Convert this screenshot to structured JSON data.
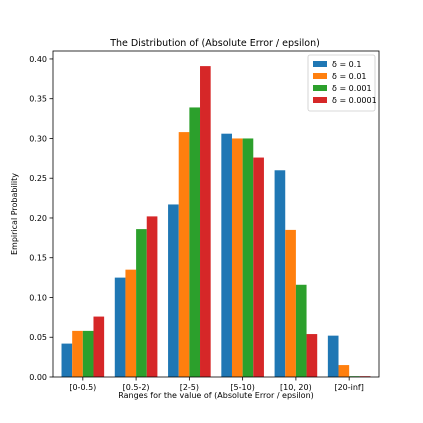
{
  "chart_data": {
    "type": "bar",
    "title": "The Distribution of (Absolute Error / epsilon)",
    "xlabel": "Ranges for the value of (Absolute Error / epsilon)",
    "ylabel": "Empirical Probability",
    "categories": [
      "[0-0.5)",
      "[0.5-2)",
      "[2-5)",
      "[5-10)",
      "[10, 20)",
      "[20-inf]"
    ],
    "ylim": [
      0,
      0.41
    ],
    "yticks": [
      "0.00",
      "0.05",
      "0.10",
      "0.15",
      "0.20",
      "0.25",
      "0.30",
      "0.35",
      "0.40"
    ],
    "legend_position": "top-right",
    "series": [
      {
        "name": "δ = 0.1",
        "color": "#1f77b4",
        "values": [
          0.042,
          0.125,
          0.217,
          0.306,
          0.26,
          0.052
        ]
      },
      {
        "name": "δ = 0.01",
        "color": "#ff7f0e",
        "values": [
          0.058,
          0.135,
          0.308,
          0.3,
          0.185,
          0.015
        ]
      },
      {
        "name": "δ = 0.001",
        "color": "#2ca02c",
        "values": [
          0.058,
          0.186,
          0.339,
          0.3,
          0.116,
          0.001
        ]
      },
      {
        "name": "δ = 0.0001",
        "color": "#d62728",
        "values": [
          0.076,
          0.202,
          0.391,
          0.276,
          0.054,
          0.001
        ]
      }
    ]
  }
}
